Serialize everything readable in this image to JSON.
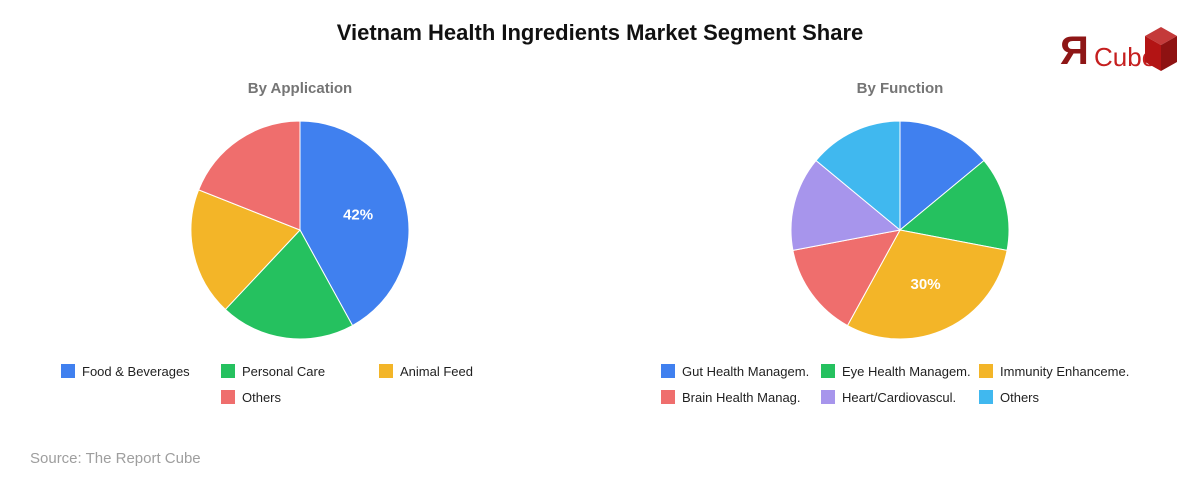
{
  "title": "Vietnam Health Ingredients Market Segment Share",
  "logo": {
    "mark": "Я",
    "text": "Cube"
  },
  "source": "Source: The Report Cube",
  "colors": {
    "blue": "#4080ef",
    "green": "#25c15f",
    "yellow": "#f3b528",
    "red": "#ef6e6d",
    "purple": "#a795ec",
    "lightblue": "#40b8ef",
    "title_gray": "#757575",
    "source_gray": "#9e9e9e",
    "logo_dark_red": "#8e1616",
    "logo_red": "#c51f1f"
  },
  "chart_data": [
    {
      "type": "pie",
      "title": "By Application",
      "legend_position": "bottom",
      "slices": [
        {
          "label": "Food & Beverages",
          "value": 42,
          "color": "#4080ef",
          "data_label": "42%",
          "legend_col": 0,
          "legend_row": 0
        },
        {
          "label": "Personal Care",
          "value": 20,
          "color": "#25c15f",
          "data_label": "",
          "legend_col": 1,
          "legend_row": 0
        },
        {
          "label": "Animal Feed",
          "value": 19,
          "color": "#f3b528",
          "data_label": "",
          "legend_col": 2,
          "legend_row": 0
        },
        {
          "label": "Others",
          "value": 19,
          "color": "#ef6e6d",
          "data_label": "",
          "legend_col": 1,
          "legend_row": 1
        }
      ]
    },
    {
      "type": "pie",
      "title": "By Function",
      "legend_position": "bottom",
      "slices": [
        {
          "label": "Gut Health Managem.",
          "value": 14,
          "color": "#4080ef",
          "data_label": "",
          "legend_col": 0,
          "legend_row": 0
        },
        {
          "label": "Eye Health Managem.",
          "value": 14,
          "color": "#25c15f",
          "data_label": "",
          "legend_col": 1,
          "legend_row": 0
        },
        {
          "label": "Immunity Enhanceme.",
          "value": 30,
          "color": "#f3b528",
          "data_label": "30%",
          "legend_col": 2,
          "legend_row": 0
        },
        {
          "label": "Brain Health Manag.",
          "value": 14,
          "color": "#ef6e6d",
          "data_label": "",
          "legend_col": 0,
          "legend_row": 1
        },
        {
          "label": "Heart/Cardiovascul.",
          "value": 14,
          "color": "#a795ec",
          "data_label": "",
          "legend_col": 1,
          "legend_row": 1
        },
        {
          "label": "Others",
          "value": 14,
          "color": "#40b8ef",
          "data_label": "",
          "legend_col": 2,
          "legend_row": 1
        }
      ]
    }
  ]
}
